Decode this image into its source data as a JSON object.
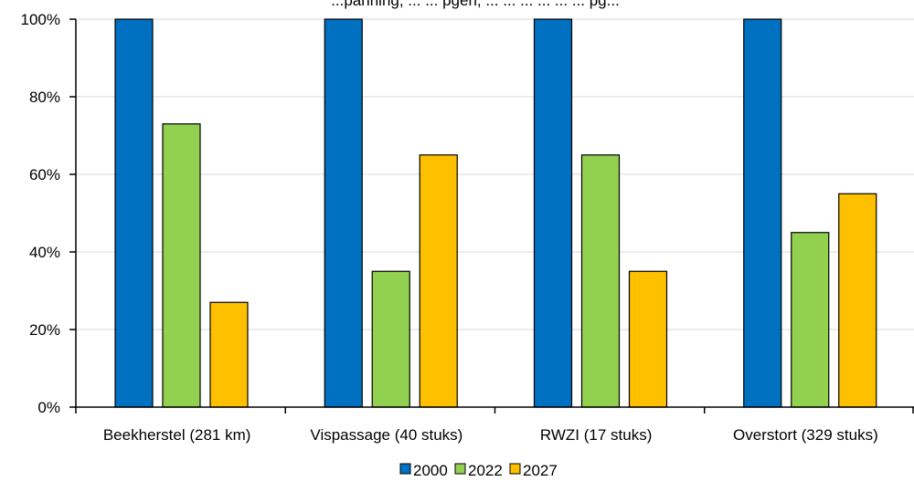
{
  "chart_data": {
    "type": "bar",
    "title": "...panning, ... ... pgen, ... ... ... ... ... ... pg...",
    "categories": [
      "Beekherstel (281 km)",
      "Vispassage (40 stuks)",
      "RWZI (17 stuks)",
      "Overstort (329 stuks)"
    ],
    "series": [
      {
        "name": "2000",
        "color": "#0070C0",
        "values": [
          100,
          100,
          100,
          100
        ]
      },
      {
        "name": "2022",
        "color": "#92D050",
        "values": [
          73,
          35,
          65,
          45
        ]
      },
      {
        "name": "2027",
        "color": "#FFC000",
        "values": [
          27,
          65,
          35,
          55
        ]
      }
    ],
    "y_ticks": [
      "0%",
      "20%",
      "40%",
      "60%",
      "80%",
      "100%"
    ],
    "ylim": [
      0,
      100
    ],
    "grid": "horizontal",
    "legend_position": "bottom"
  }
}
